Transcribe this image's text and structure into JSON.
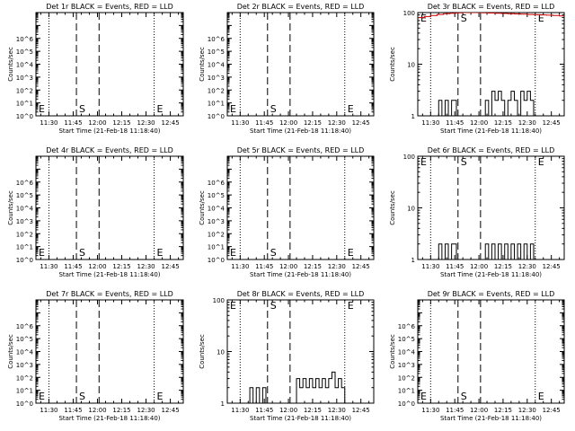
{
  "figure": {
    "xlabel": "Start Time (21-Feb-18 11:18:40)",
    "ylabel": "Counts/sec",
    "colors": {
      "events": "#000000",
      "lld": "#cc0000",
      "axes": "#000000"
    }
  },
  "chart_data": [
    {
      "type": "line",
      "title": "Det 1r BLACK = Events, RED = LLD",
      "xlabel": "Start Time (21-Feb-18 11:18:40)",
      "ylabel": "Counts/sec",
      "yscale": "log",
      "xlim": [
        "11:22",
        "12:53"
      ],
      "ylim": [
        1,
        100000000
      ],
      "xticks": [
        "11:30",
        "11:45",
        "12:00",
        "12:15",
        "12:30",
        "12:45"
      ],
      "yticks": [
        "10^0",
        "10^1",
        "10^2",
        "10^3",
        "10^4",
        "10^5",
        "10^6"
      ],
      "dotted_lines": [
        "11:30",
        "12:35"
      ],
      "dashed_lines": [
        "11:47",
        "12:01"
      ],
      "annotations": [
        {
          "text": "E",
          "x": "11:22"
        },
        {
          "text": "S",
          "x": "11:47"
        },
        {
          "text": "E",
          "x": "12:35"
        }
      ],
      "series": []
    },
    {
      "type": "line",
      "title": "Det 2r BLACK = Events, RED = LLD",
      "xlabel": "Start Time (21-Feb-18 11:18:40)",
      "ylabel": "Counts/sec",
      "yscale": "log",
      "xlim": [
        "11:22",
        "12:53"
      ],
      "ylim": [
        1,
        100000000
      ],
      "xticks": [
        "11:30",
        "11:45",
        "12:00",
        "12:15",
        "12:30",
        "12:45"
      ],
      "yticks": [
        "10^0",
        "10^1",
        "10^2",
        "10^3",
        "10^4",
        "10^5",
        "10^6"
      ],
      "dotted_lines": [
        "11:30",
        "12:35"
      ],
      "dashed_lines": [
        "11:47",
        "12:01"
      ],
      "annotations": [
        {
          "text": "E",
          "x": "11:22"
        },
        {
          "text": "S",
          "x": "11:47"
        },
        {
          "text": "E",
          "x": "12:35"
        }
      ],
      "series": []
    },
    {
      "type": "line",
      "title": "Det 3r BLACK = Events, RED = LLD",
      "xlabel": "Start Time (21-Feb-18 11:18:40)",
      "ylabel": "Counts/sec",
      "yscale": "log",
      "xlim": [
        "11:22",
        "12:53"
      ],
      "ylim": [
        1,
        100
      ],
      "xticks": [
        "11:30",
        "11:45",
        "12:00",
        "12:15",
        "12:30",
        "12:45"
      ],
      "yticks": [
        "1",
        "10",
        "100"
      ],
      "dotted_lines": [
        "11:30",
        "12:35"
      ],
      "dashed_lines": [
        "11:47",
        "12:01"
      ],
      "annotations": [
        {
          "text": "E",
          "x": "11:22"
        },
        {
          "text": "S",
          "x": "11:47"
        },
        {
          "text": "E",
          "x": "12:35"
        }
      ],
      "series": [
        {
          "color": "#cc0000",
          "x": [
            "11:22",
            "11:26",
            "11:30",
            "11:34",
            "11:38",
            "11:42",
            "11:46",
            "11:50",
            "11:54",
            "11:58",
            "12:02",
            "12:06",
            "12:10",
            "12:14",
            "12:18",
            "12:22",
            "12:26",
            "12:30",
            "12:34",
            "12:38",
            "12:42",
            "12:46",
            "12:50",
            "12:53"
          ],
          "y": [
            80,
            84,
            88,
            92,
            95,
            97,
            99,
            100,
            100,
            100,
            99,
            98,
            97,
            96,
            95,
            94,
            93,
            92,
            91,
            90,
            89,
            88,
            86,
            84
          ]
        },
        {
          "color": "#000000",
          "x": [
            "11:33",
            "11:35",
            "11:37",
            "11:39",
            "11:41",
            "11:43",
            "11:46",
            "12:02",
            "12:04",
            "12:06",
            "12:08",
            "12:10",
            "12:12",
            "12:14",
            "12:16",
            "12:18",
            "12:20",
            "12:22",
            "12:24",
            "12:26",
            "12:28",
            "12:30",
            "12:32",
            "12:34"
          ],
          "y": [
            1,
            2,
            1,
            2,
            1,
            2,
            1,
            1,
            2,
            1,
            3,
            2,
            3,
            2,
            1,
            2,
            3,
            2,
            1,
            3,
            2,
            3,
            2,
            1
          ]
        }
      ]
    },
    {
      "type": "line",
      "title": "Det 4r BLACK = Events, RED = LLD",
      "xlabel": "Start Time (21-Feb-18 11:18:40)",
      "ylabel": "Counts/sec",
      "yscale": "log",
      "xlim": [
        "11:22",
        "12:53"
      ],
      "ylim": [
        1,
        100000000
      ],
      "xticks": [
        "11:30",
        "11:45",
        "12:00",
        "12:15",
        "12:30",
        "12:45"
      ],
      "yticks": [
        "10^0",
        "10^1",
        "10^2",
        "10^3",
        "10^4",
        "10^5",
        "10^6"
      ],
      "dotted_lines": [
        "11:30",
        "12:35"
      ],
      "dashed_lines": [
        "11:47",
        "12:01"
      ],
      "annotations": [
        {
          "text": "E",
          "x": "11:22"
        },
        {
          "text": "S",
          "x": "11:47"
        },
        {
          "text": "E",
          "x": "12:35"
        }
      ],
      "series": []
    },
    {
      "type": "line",
      "title": "Det 5r BLACK = Events, RED = LLD",
      "xlabel": "Start Time (21-Feb-18 11:18:40)",
      "ylabel": "Counts/sec",
      "yscale": "log",
      "xlim": [
        "11:22",
        "12:53"
      ],
      "ylim": [
        1,
        100000000
      ],
      "xticks": [
        "11:30",
        "11:45",
        "12:00",
        "12:15",
        "12:30",
        "12:45"
      ],
      "yticks": [
        "10^0",
        "10^1",
        "10^2",
        "10^3",
        "10^4",
        "10^5",
        "10^6"
      ],
      "dotted_lines": [
        "11:30",
        "12:35"
      ],
      "dashed_lines": [
        "11:47",
        "12:01"
      ],
      "annotations": [
        {
          "text": "E",
          "x": "11:22"
        },
        {
          "text": "S",
          "x": "11:47"
        },
        {
          "text": "E",
          "x": "12:35"
        }
      ],
      "series": []
    },
    {
      "type": "line",
      "title": "Det 6r BLACK = Events, RED = LLD",
      "xlabel": "Start Time (21-Feb-18 11:18:40)",
      "ylabel": "Counts/sec",
      "yscale": "log",
      "xlim": [
        "11:22",
        "12:53"
      ],
      "ylim": [
        1,
        100
      ],
      "xticks": [
        "11:30",
        "11:45",
        "12:00",
        "12:15",
        "12:30",
        "12:45"
      ],
      "yticks": [
        "1",
        "10",
        "100"
      ],
      "dotted_lines": [
        "11:30",
        "12:35"
      ],
      "dashed_lines": [
        "11:47",
        "12:01"
      ],
      "annotations": [
        {
          "text": "E",
          "x": "11:22"
        },
        {
          "text": "S",
          "x": "11:47"
        },
        {
          "text": "E",
          "x": "12:35"
        }
      ],
      "series": [
        {
          "color": "#000000",
          "x": [
            "11:33",
            "11:35",
            "11:37",
            "11:39",
            "11:41",
            "11:43",
            "11:46",
            "12:02",
            "12:04",
            "12:06",
            "12:08",
            "12:10",
            "12:12",
            "12:14",
            "12:16",
            "12:18",
            "12:20",
            "12:22",
            "12:24",
            "12:26",
            "12:28",
            "12:30",
            "12:32",
            "12:34"
          ],
          "y": [
            1,
            2,
            1,
            2,
            1,
            2,
            1,
            1,
            2,
            1,
            2,
            1,
            2,
            1,
            2,
            1,
            2,
            1,
            2,
            1,
            2,
            1,
            2,
            1
          ]
        }
      ]
    },
    {
      "type": "line",
      "title": "Det 7r BLACK = Events, RED = LLD",
      "xlabel": "Start Time (21-Feb-18 11:18:40)",
      "ylabel": "Counts/sec",
      "yscale": "log",
      "xlim": [
        "11:22",
        "12:53"
      ],
      "ylim": [
        1,
        100000000
      ],
      "xticks": [
        "11:30",
        "11:45",
        "12:00",
        "12:15",
        "12:30",
        "12:45"
      ],
      "yticks": [
        "10^0",
        "10^1",
        "10^2",
        "10^3",
        "10^4",
        "10^5",
        "10^6"
      ],
      "dotted_lines": [
        "11:30",
        "12:35"
      ],
      "dashed_lines": [
        "11:47",
        "12:01"
      ],
      "annotations": [
        {
          "text": "E",
          "x": "11:22"
        },
        {
          "text": "S",
          "x": "11:47"
        },
        {
          "text": "E",
          "x": "12:35"
        }
      ],
      "series": []
    },
    {
      "type": "line",
      "title": "Det 8r BLACK = Events, RED = LLD",
      "xlabel": "Start Time (21-Feb-18 11:18:40)",
      "ylabel": "Counts/sec",
      "yscale": "log",
      "xlim": [
        "11:22",
        "12:53"
      ],
      "ylim": [
        1,
        100
      ],
      "xticks": [
        "11:30",
        "11:45",
        "12:00",
        "12:15",
        "12:30",
        "12:45"
      ],
      "yticks": [
        "1",
        "10",
        "100"
      ],
      "dotted_lines": [
        "11:30",
        "12:35"
      ],
      "dashed_lines": [
        "11:47",
        "12:01"
      ],
      "annotations": [
        {
          "text": "E",
          "x": "11:22"
        },
        {
          "text": "S",
          "x": "11:47"
        },
        {
          "text": "E",
          "x": "12:35"
        }
      ],
      "series": [
        {
          "color": "#000000",
          "x": [
            "11:35",
            "11:36",
            "11:38",
            "11:40",
            "11:42",
            "11:44",
            "11:46",
            "12:03",
            "12:05",
            "12:07",
            "12:09",
            "12:11",
            "12:13",
            "12:15",
            "12:17",
            "12:19",
            "12:21",
            "12:23",
            "12:25",
            "12:27",
            "12:29",
            "12:31",
            "12:33",
            "12:35"
          ],
          "y": [
            1,
            2,
            1,
            2,
            1,
            2,
            1,
            1,
            3,
            2,
            3,
            2,
            3,
            2,
            3,
            2,
            3,
            2,
            3,
            4,
            2,
            3,
            2,
            1
          ]
        }
      ]
    },
    {
      "type": "line",
      "title": "Det 9r BLACK = Events, RED = LLD",
      "xlabel": "Start Time (21-Feb-18 11:18:40)",
      "ylabel": "Counts/sec",
      "yscale": "log",
      "xlim": [
        "11:22",
        "12:53"
      ],
      "ylim": [
        1,
        100000000
      ],
      "xticks": [
        "11:30",
        "11:45",
        "12:00",
        "12:15",
        "12:30",
        "12:45"
      ],
      "yticks": [
        "10^0",
        "10^1",
        "10^2",
        "10^3",
        "10^4",
        "10^5",
        "10^6"
      ],
      "dotted_lines": [
        "11:30",
        "12:35"
      ],
      "dashed_lines": [
        "11:47",
        "12:01"
      ],
      "annotations": [
        {
          "text": "E",
          "x": "11:22"
        },
        {
          "text": "S",
          "x": "11:47"
        },
        {
          "text": "E",
          "x": "12:35"
        }
      ],
      "series": []
    }
  ]
}
